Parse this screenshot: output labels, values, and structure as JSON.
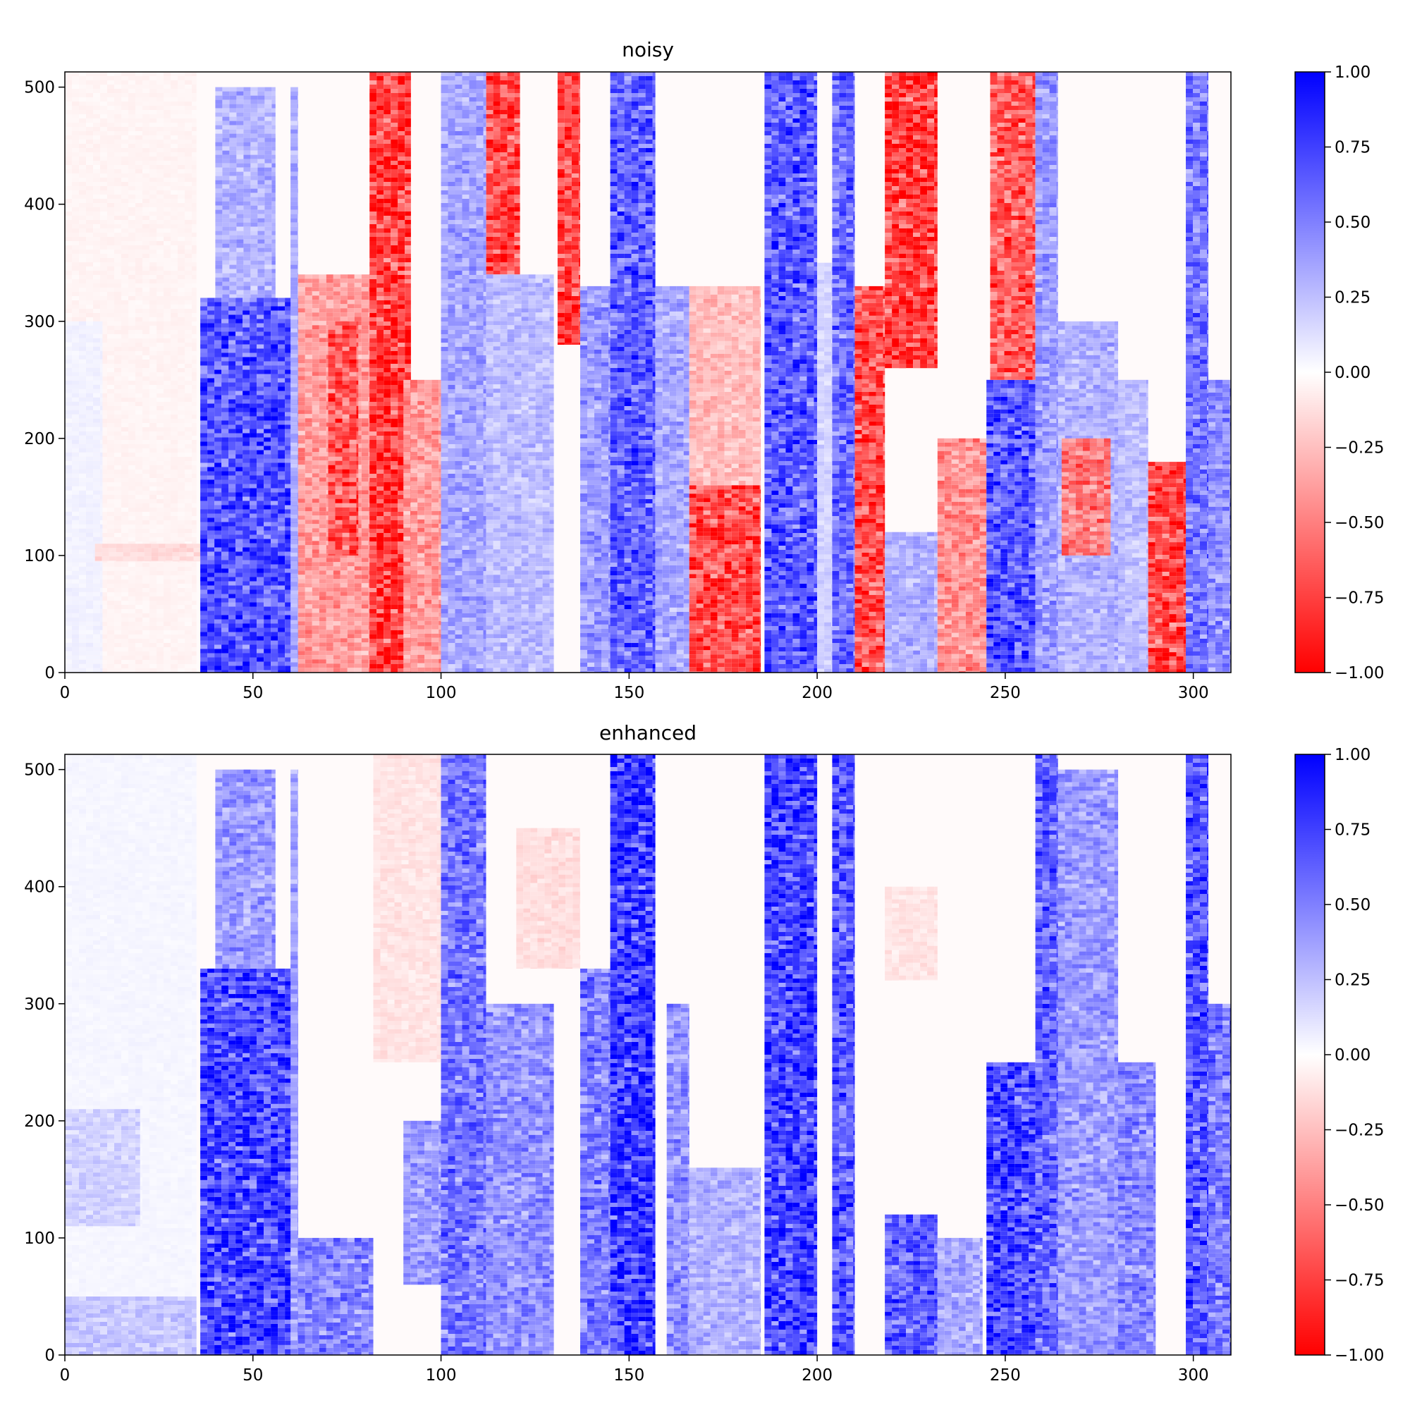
{
  "chart_data": [
    {
      "type": "heatmap",
      "title": "noisy",
      "xlim": [
        0,
        310
      ],
      "ylim": [
        0,
        513
      ],
      "xticks": [
        0,
        50,
        100,
        150,
        200,
        250,
        300
      ],
      "yticks": [
        0,
        100,
        200,
        300,
        400,
        500
      ],
      "grid": false,
      "colorbar": {
        "colormap": "bwr_r",
        "min": -1.0,
        "max": 1.0,
        "ticks": [
          1.0,
          0.75,
          0.5,
          0.25,
          0.0,
          -0.25,
          -0.5,
          -0.75,
          -1.0
        ],
        "tick_labels": [
          "1.00",
          "0.75",
          "0.50",
          "0.25",
          "0.00",
          "−0.25",
          "−0.50",
          "−0.75",
          "−1.00"
        ]
      },
      "bands": [
        {
          "x": [
            0,
            35
          ],
          "y": [
            0,
            513
          ],
          "value": -0.05
        },
        {
          "x": [
            0,
            10
          ],
          "y": [
            0,
            300
          ],
          "value": 0.06
        },
        {
          "x": [
            8,
            40
          ],
          "y": [
            95,
            110
          ],
          "value": -0.15
        },
        {
          "x": [
            36,
            62
          ],
          "y": [
            0,
            320
          ],
          "value": 0.78
        },
        {
          "x": [
            40,
            56
          ],
          "y": [
            320,
            500
          ],
          "value": 0.35
        },
        {
          "x": [
            60,
            62
          ],
          "y": [
            0,
            500
          ],
          "value": 0.35
        },
        {
          "x": [
            62,
            82
          ],
          "y": [
            0,
            340
          ],
          "value": -0.45
        },
        {
          "x": [
            70,
            78
          ],
          "y": [
            100,
            300
          ],
          "value": -0.75
        },
        {
          "x": [
            81,
            92
          ],
          "y": [
            0,
            513
          ],
          "value": -0.88
        },
        {
          "x": [
            90,
            100
          ],
          "y": [
            0,
            250
          ],
          "value": -0.45
        },
        {
          "x": [
            100,
            112
          ],
          "y": [
            0,
            513
          ],
          "value": 0.4
        },
        {
          "x": [
            112,
            121
          ],
          "y": [
            340,
            513
          ],
          "value": -0.82
        },
        {
          "x": [
            112,
            130
          ],
          "y": [
            0,
            340
          ],
          "value": 0.3
        },
        {
          "x": [
            131,
            137
          ],
          "y": [
            280,
            513
          ],
          "value": -0.82
        },
        {
          "x": [
            137,
            145
          ],
          "y": [
            0,
            330
          ],
          "value": 0.45
        },
        {
          "x": [
            145,
            157
          ],
          "y": [
            0,
            513
          ],
          "value": 0.72
        },
        {
          "x": [
            157,
            166
          ],
          "y": [
            0,
            330
          ],
          "value": 0.4
        },
        {
          "x": [
            166,
            185
          ],
          "y": [
            0,
            160
          ],
          "value": -0.82
        },
        {
          "x": [
            166,
            185
          ],
          "y": [
            160,
            330
          ],
          "value": -0.3
        },
        {
          "x": [
            186,
            200
          ],
          "y": [
            0,
            513
          ],
          "value": 0.75
        },
        {
          "x": [
            200,
            204
          ],
          "y": [
            0,
            350
          ],
          "value": 0.2
        },
        {
          "x": [
            204,
            210
          ],
          "y": [
            0,
            513
          ],
          "value": 0.65
        },
        {
          "x": [
            210,
            218
          ],
          "y": [
            0,
            330
          ],
          "value": -0.82
        },
        {
          "x": [
            218,
            232
          ],
          "y": [
            260,
            513
          ],
          "value": -0.88
        },
        {
          "x": [
            218,
            232
          ],
          "y": [
            0,
            120
          ],
          "value": 0.35
        },
        {
          "x": [
            232,
            245
          ],
          "y": [
            0,
            200
          ],
          "value": -0.5
        },
        {
          "x": [
            245,
            258
          ],
          "y": [
            0,
            250
          ],
          "value": 0.78
        },
        {
          "x": [
            246,
            258
          ],
          "y": [
            250,
            513
          ],
          "value": -0.72
        },
        {
          "x": [
            258,
            264
          ],
          "y": [
            0,
            513
          ],
          "value": 0.45
        },
        {
          "x": [
            264,
            280
          ],
          "y": [
            0,
            300
          ],
          "value": 0.35
        },
        {
          "x": [
            265,
            278
          ],
          "y": [
            100,
            200
          ],
          "value": -0.6
        },
        {
          "x": [
            280,
            288
          ],
          "y": [
            0,
            250
          ],
          "value": 0.3
        },
        {
          "x": [
            288,
            298
          ],
          "y": [
            0,
            180
          ],
          "value": -0.85
        },
        {
          "x": [
            298,
            304
          ],
          "y": [
            0,
            513
          ],
          "value": 0.62
        },
        {
          "x": [
            304,
            310
          ],
          "y": [
            0,
            250
          ],
          "value": 0.5
        }
      ]
    },
    {
      "type": "heatmap",
      "title": "enhanced",
      "xlim": [
        0,
        310
      ],
      "ylim": [
        0,
        513
      ],
      "xticks": [
        0,
        50,
        100,
        150,
        200,
        250,
        300
      ],
      "yticks": [
        0,
        100,
        200,
        300,
        400,
        500
      ],
      "grid": false,
      "colorbar": {
        "colormap": "bwr_r",
        "min": -1.0,
        "max": 1.0,
        "ticks": [
          1.0,
          0.75,
          0.5,
          0.25,
          0.0,
          -0.25,
          -0.5,
          -0.75,
          -1.0
        ],
        "tick_labels": [
          "1.00",
          "0.75",
          "0.50",
          "0.25",
          "0.00",
          "−0.25",
          "−0.50",
          "−0.75",
          "−1.00"
        ]
      },
      "bands": [
        {
          "x": [
            0,
            35
          ],
          "y": [
            0,
            513
          ],
          "value": 0.04
        },
        {
          "x": [
            0,
            20
          ],
          "y": [
            110,
            210
          ],
          "value": 0.2
        },
        {
          "x": [
            0,
            35
          ],
          "y": [
            0,
            50
          ],
          "value": 0.25
        },
        {
          "x": [
            36,
            62
          ],
          "y": [
            0,
            330
          ],
          "value": 0.85
        },
        {
          "x": [
            40,
            56
          ],
          "y": [
            330,
            500
          ],
          "value": 0.45
        },
        {
          "x": [
            60,
            62
          ],
          "y": [
            0,
            500
          ],
          "value": 0.4
        },
        {
          "x": [
            62,
            82
          ],
          "y": [
            0,
            100
          ],
          "value": 0.55
        },
        {
          "x": [
            82,
            100
          ],
          "y": [
            250,
            513
          ],
          "value": -0.12
        },
        {
          "x": [
            90,
            100
          ],
          "y": [
            60,
            200
          ],
          "value": 0.45
        },
        {
          "x": [
            100,
            112
          ],
          "y": [
            0,
            513
          ],
          "value": 0.62
        },
        {
          "x": [
            112,
            130
          ],
          "y": [
            0,
            300
          ],
          "value": 0.5
        },
        {
          "x": [
            120,
            137
          ],
          "y": [
            330,
            450
          ],
          "value": -0.15
        },
        {
          "x": [
            137,
            145
          ],
          "y": [
            0,
            330
          ],
          "value": 0.6
        },
        {
          "x": [
            145,
            157
          ],
          "y": [
            0,
            513
          ],
          "value": 0.88
        },
        {
          "x": [
            160,
            166
          ],
          "y": [
            0,
            300
          ],
          "value": 0.5
        },
        {
          "x": [
            166,
            185
          ],
          "y": [
            0,
            160
          ],
          "value": 0.35
        },
        {
          "x": [
            186,
            200
          ],
          "y": [
            0,
            513
          ],
          "value": 0.85
        },
        {
          "x": [
            204,
            210
          ],
          "y": [
            0,
            513
          ],
          "value": 0.75
        },
        {
          "x": [
            218,
            232
          ],
          "y": [
            0,
            120
          ],
          "value": 0.72
        },
        {
          "x": [
            218,
            232
          ],
          "y": [
            320,
            400
          ],
          "value": -0.12
        },
        {
          "x": [
            232,
            244
          ],
          "y": [
            0,
            100
          ],
          "value": 0.4
        },
        {
          "x": [
            245,
            258
          ],
          "y": [
            0,
            250
          ],
          "value": 0.85
        },
        {
          "x": [
            258,
            264
          ],
          "y": [
            0,
            513
          ],
          "value": 0.7
        },
        {
          "x": [
            264,
            280
          ],
          "y": [
            0,
            500
          ],
          "value": 0.45
        },
        {
          "x": [
            280,
            290
          ],
          "y": [
            0,
            250
          ],
          "value": 0.55
        },
        {
          "x": [
            298,
            304
          ],
          "y": [
            0,
            513
          ],
          "value": 0.75
        },
        {
          "x": [
            304,
            310
          ],
          "y": [
            0,
            300
          ],
          "value": 0.6
        }
      ]
    }
  ]
}
